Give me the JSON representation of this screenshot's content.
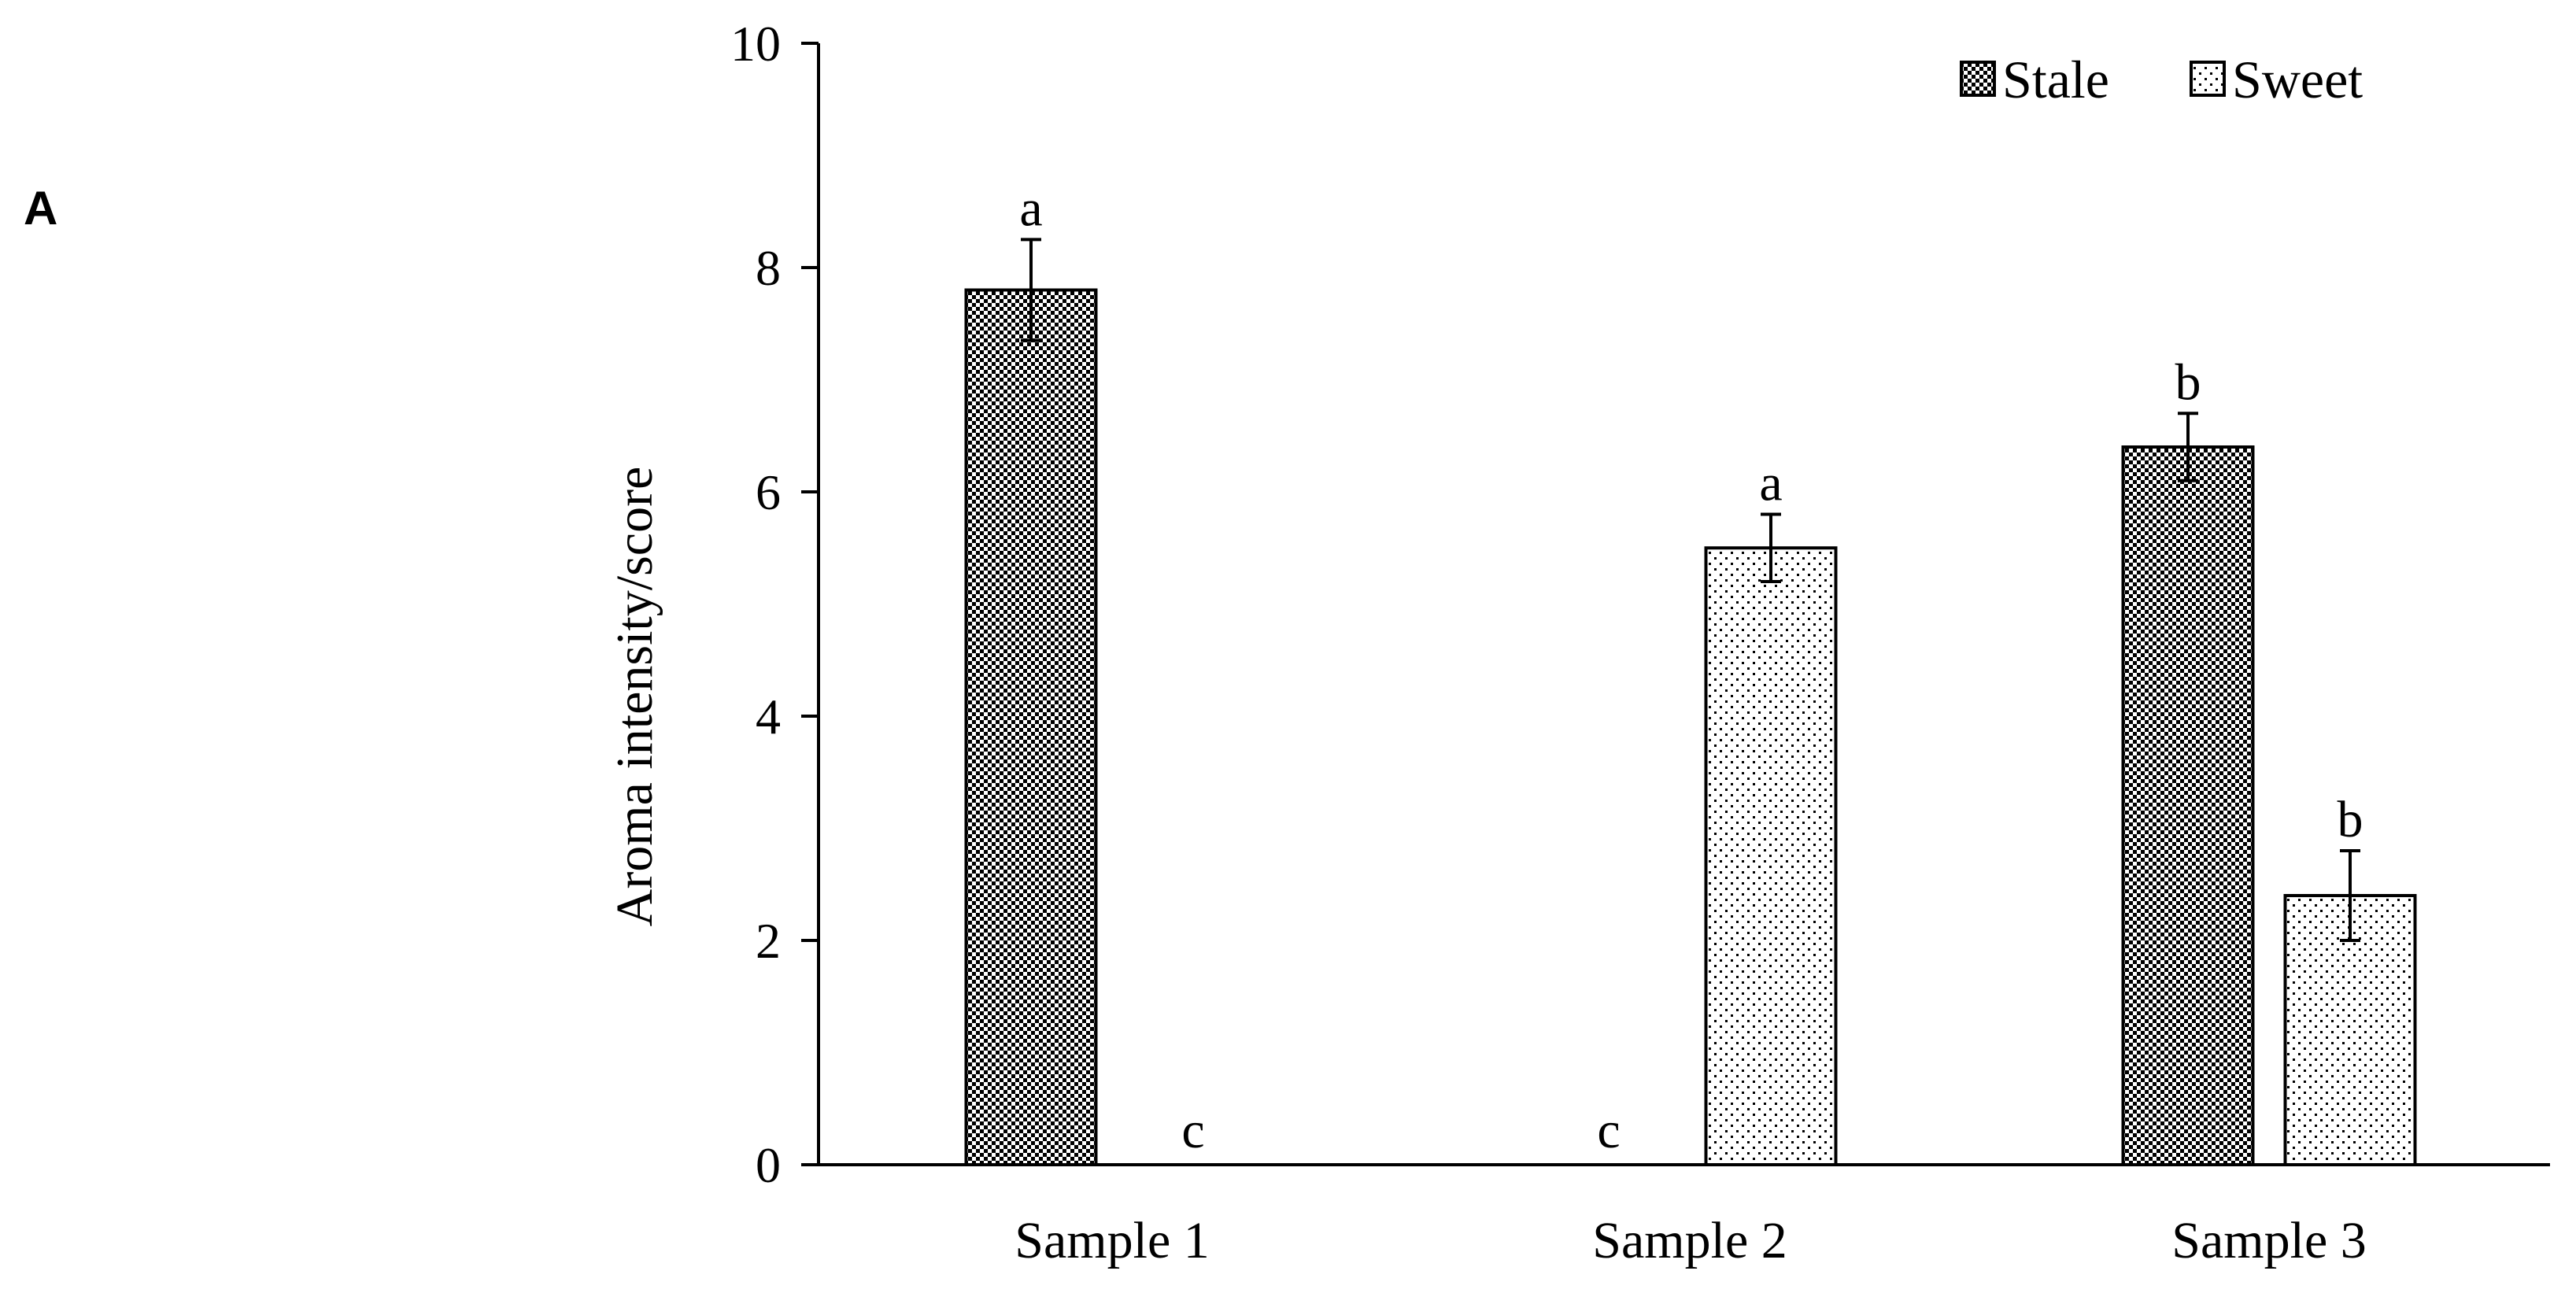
{
  "panel_label": "A",
  "colors": {
    "stale": "#000000",
    "sweet": "#000000",
    "axis": "#000000",
    "background": "#ffffff"
  },
  "chart_data": {
    "type": "bar",
    "title": "",
    "xlabel": "",
    "ylabel": "Aroma intensity/score",
    "ylim": [
      0,
      10
    ],
    "yticks": [
      "0",
      "2",
      "4",
      "6",
      "8",
      "10"
    ],
    "grid": false,
    "legend_position": "top-right",
    "categories": [
      "Sample 1",
      "Sample 2",
      "Sample 3"
    ],
    "series": [
      {
        "name": "Stale",
        "pattern": "dense-checker",
        "values": [
          7.8,
          0,
          6.4
        ],
        "errors": [
          0.45,
          0,
          0.3
        ],
        "labels": [
          "a",
          "c",
          "b"
        ]
      },
      {
        "name": "Sweet",
        "pattern": "sparse-dots",
        "values": [
          0,
          5.5,
          2.4
        ],
        "errors": [
          0,
          0.3,
          0.4
        ],
        "labels": [
          "c",
          "a",
          "b"
        ]
      }
    ]
  }
}
